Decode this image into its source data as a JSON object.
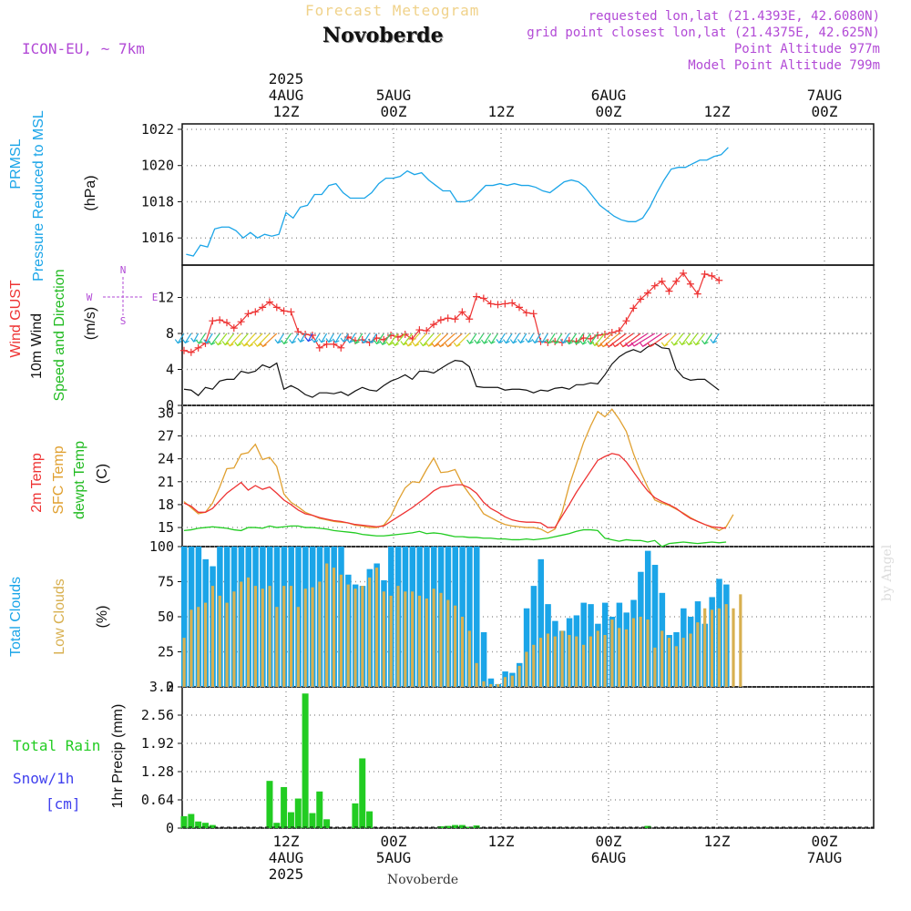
{
  "header": {
    "title": "Forecast Meteogram",
    "location": "Novoberde",
    "model": "ICON-EU, ~ 7km",
    "requested": "requested lon,lat (21.4393E, 42.6080N)",
    "grid_point": "grid point closest lon,lat (21.4375E, 42.625N)",
    "point_altitude": "Point Altitude 977m",
    "model_altitude": "Model Point Altitude 799m",
    "credit": "by Angel",
    "footer": "Novoberde"
  },
  "colors": {
    "pressure": "#1ba5e8",
    "gust": "#ee3333",
    "wind": "#111111",
    "temp2m": "#ee3333",
    "sfc_temp": "#e0a030",
    "dewpt": "#22cc22",
    "total_clouds": "#1ba5e8",
    "low_clouds": "#d8b050",
    "rain": "#22cc22",
    "snow": "#4040ee",
    "annotation": "#b24ad6"
  },
  "chart_data": [
    {
      "type": "line",
      "panel": "pressure",
      "ylabel_lines": [
        "PRMSL",
        "Pressure Reduced to MSL"
      ],
      "unit": "(hPa)",
      "ylim": [
        1014.5,
        1022.3
      ],
      "yticks": [
        1016,
        1018,
        1020,
        1022
      ],
      "xlim": [
        0,
        76
      ],
      "series": [
        {
          "values": [
            1015.1,
            1015.0,
            1015.6,
            1015.5,
            1016.5,
            1016.6,
            1016.6,
            1016.4,
            1016.0,
            1016.3,
            1016.0,
            1016.2,
            1016.1,
            1016.2,
            1017.4,
            1017.1,
            1017.7,
            1017.8,
            1018.4,
            1018.4,
            1018.9,
            1019.0,
            1018.5,
            1018.2,
            1018.2,
            1018.2,
            1018.5,
            1019.0,
            1019.3,
            1019.3,
            1019.4,
            1019.7,
            1019.5,
            1019.6,
            1019.2,
            1018.9,
            1018.6,
            1018.6,
            1018.0,
            1018.0,
            1018.1,
            1018.5,
            1018.9,
            1018.9,
            1019.0,
            1018.9,
            1019.0,
            1018.9,
            1018.9,
            1018.8,
            1018.6,
            1018.5,
            1018.8,
            1019.1,
            1019.2,
            1019.1,
            1018.8,
            1018.3,
            1017.8,
            1017.5,
            1017.2,
            1017.0,
            1016.9,
            1016.9,
            1017.1,
            1017.7,
            1018.5,
            1019.2,
            1019.8,
            1019.9,
            1019.9,
            1020.1,
            1020.3,
            1020.3,
            1020.5,
            1020.6,
            1021.0
          ]
        }
      ]
    },
    {
      "type": "line",
      "panel": "wind",
      "ylabel_lines": [
        "Wind GUST",
        "10m Wind",
        "Speed and Direction"
      ],
      "unit": "(m/s)",
      "compass": {
        "n": "N",
        "s": "S",
        "w": "W",
        "e": "E"
      },
      "ylim": [
        0,
        15.6
      ],
      "yticks": [
        0,
        4,
        8,
        12
      ],
      "series": [
        {
          "name": "Wind GUST",
          "values": [
            6.1,
            5.9,
            6.4,
            6.9,
            9.4,
            9.5,
            9.2,
            8.6,
            9.3,
            10.2,
            10.4,
            10.9,
            11.5,
            10.9,
            10.5,
            10.4,
            8.2,
            7.9,
            7.8,
            6.4,
            6.8,
            6.8,
            6.4,
            7.6,
            7.2,
            7.3,
            7.0,
            7.5,
            7.3,
            7.8,
            7.6,
            7.9,
            7.4,
            8.4,
            8.3,
            9.0,
            9.5,
            9.7,
            9.6,
            10.4,
            9.6,
            12.1,
            11.9,
            11.3,
            11.2,
            11.3,
            11.4,
            10.9,
            10.3,
            10.2,
            7.1,
            7.0,
            7.1,
            7.0,
            7.2,
            7.1,
            7.5,
            7.4,
            7.8,
            7.9,
            8.1,
            8.3,
            9.4,
            10.8,
            11.8,
            12.5,
            13.3,
            13.8,
            12.7,
            13.8,
            14.7,
            13.5,
            12.4,
            14.6,
            14.4,
            13.9
          ]
        },
        {
          "name": "10m Wind",
          "values": [
            1.8,
            1.7,
            1.1,
            2.0,
            1.8,
            2.7,
            2.9,
            2.9,
            3.8,
            3.6,
            3.8,
            4.5,
            4.2,
            4.7,
            1.8,
            2.2,
            1.8,
            1.2,
            0.9,
            1.4,
            1.4,
            1.3,
            1.5,
            1.1,
            1.6,
            2.0,
            1.7,
            1.6,
            2.2,
            2.7,
            3.0,
            3.4,
            2.9,
            3.8,
            3.8,
            3.6,
            4.1,
            4.6,
            5.0,
            4.9,
            4.3,
            2.1,
            2.0,
            2.0,
            2.0,
            1.7,
            1.8,
            1.8,
            1.7,
            1.4,
            1.7,
            1.6,
            1.9,
            2.0,
            1.8,
            2.3,
            2.3,
            2.5,
            2.4,
            3.4,
            4.6,
            5.4,
            5.9,
            6.2,
            5.9,
            6.5,
            6.9,
            6.4,
            6.3,
            4.0,
            3.1,
            2.8,
            2.9,
            2.9,
            2.3,
            1.7
          ]
        }
      ]
    },
    {
      "type": "line",
      "panel": "temperature",
      "ylabel_lines": [
        "2m Temp",
        "SFC Temp",
        "dewpt Temp"
      ],
      "unit": "(C)",
      "ylim": [
        12.5,
        31
      ],
      "yticks": [
        15,
        18,
        21,
        24,
        27,
        30
      ],
      "series": [
        {
          "name": "2m Temp",
          "values": [
            18.2,
            17.8,
            17.0,
            17.0,
            17.5,
            18.5,
            19.5,
            20.2,
            20.9,
            19.9,
            20.5,
            20.0,
            20.3,
            19.5,
            18.6,
            18.0,
            17.3,
            16.8,
            16.6,
            16.3,
            16.1,
            15.9,
            15.8,
            15.6,
            15.4,
            15.3,
            15.2,
            15.1,
            15.2,
            15.8,
            16.4,
            17.0,
            17.6,
            18.3,
            19.0,
            19.8,
            20.3,
            20.4,
            20.6,
            20.6,
            20.2,
            19.5,
            18.3,
            17.5,
            17.0,
            16.4,
            16.0,
            15.8,
            15.7,
            15.7,
            15.6,
            15.0,
            15.0,
            16.5,
            18.0,
            19.6,
            21.0,
            22.4,
            23.8,
            24.3,
            24.7,
            24.5,
            23.6,
            22.3,
            21.0,
            19.8,
            18.9,
            18.4,
            18.0,
            17.5,
            16.8,
            16.2,
            15.8,
            15.4,
            15.1,
            15.0,
            14.9
          ]
        },
        {
          "name": "SFC Temp",
          "values": [
            18.4,
            17.6,
            16.8,
            17.0,
            18.2,
            20.3,
            22.7,
            22.8,
            24.6,
            24.8,
            25.9,
            23.9,
            24.2,
            23.0,
            19.4,
            18.3,
            17.7,
            17.0,
            16.6,
            16.2,
            16.0,
            15.8,
            15.7,
            15.6,
            15.3,
            15.2,
            15.0,
            15.0,
            15.3,
            16.5,
            18.5,
            20.2,
            21.0,
            20.9,
            22.6,
            24.1,
            22.2,
            22.3,
            22.6,
            20.7,
            19.4,
            18.2,
            16.8,
            16.3,
            15.8,
            15.4,
            15.2,
            15.1,
            15.0,
            15.0,
            14.8,
            14.3,
            14.8,
            17.0,
            20.5,
            23.3,
            26.1,
            28.3,
            30.2,
            29.5,
            30.5,
            29.2,
            27.6,
            24.7,
            22.3,
            20.3,
            18.6,
            18.2,
            17.9,
            17.4,
            16.9,
            16.3,
            15.8,
            15.4,
            15.0,
            14.6,
            15.1,
            16.7
          ]
        },
        {
          "name": "dewpt Temp",
          "values": [
            14.6,
            14.7,
            14.9,
            15.0,
            15.1,
            15.0,
            14.9,
            14.7,
            14.6,
            15.0,
            15.0,
            14.9,
            15.2,
            15.0,
            15.1,
            15.2,
            15.2,
            15.0,
            15.0,
            14.9,
            14.8,
            14.6,
            14.5,
            14.4,
            14.3,
            14.1,
            14.0,
            13.9,
            13.9,
            14.0,
            14.1,
            14.2,
            14.3,
            14.5,
            14.2,
            14.3,
            14.2,
            14.0,
            13.8,
            13.8,
            13.7,
            13.7,
            13.6,
            13.6,
            13.5,
            13.5,
            13.4,
            13.4,
            13.5,
            13.4,
            13.5,
            13.6,
            13.8,
            14.0,
            14.2,
            14.5,
            14.7,
            14.7,
            14.6,
            13.6,
            13.4,
            13.2,
            13.4,
            13.3,
            13.3,
            13.1,
            13.3,
            12.5,
            12.9,
            13.0,
            13.1,
            13.0,
            12.9,
            13.0,
            13.1,
            13.0,
            13.1
          ]
        }
      ]
    },
    {
      "type": "bar",
      "panel": "clouds",
      "ylabel_lines": [
        "Total Clouds",
        "Low Clouds"
      ],
      "unit": "(%)",
      "ylim": [
        0,
        100
      ],
      "yticks": [
        0,
        25,
        50,
        75,
        100
      ],
      "series": [
        {
          "name": "Total Clouds",
          "values": [
            100,
            100,
            100,
            91,
            86,
            100,
            100,
            100,
            100,
            100,
            100,
            100,
            100,
            100,
            100,
            100,
            100,
            100,
            100,
            100,
            100,
            100,
            100,
            80,
            73,
            72,
            84,
            88,
            76,
            100,
            100,
            100,
            100,
            100,
            100,
            100,
            100,
            100,
            100,
            100,
            100,
            100,
            39,
            6,
            2,
            11,
            10,
            17,
            56,
            72,
            91,
            59,
            47,
            40,
            49,
            51,
            60,
            59,
            45,
            60,
            50,
            60,
            53,
            62,
            82,
            97,
            87,
            67,
            37,
            39,
            56,
            50,
            61,
            45,
            64,
            77,
            73
          ]
        },
        {
          "name": "Low Clouds",
          "values": [
            35,
            55,
            57,
            60,
            72,
            65,
            60,
            68,
            75,
            78,
            72,
            70,
            72,
            57,
            72,
            72,
            57,
            70,
            71,
            75,
            88,
            85,
            80,
            73,
            70,
            72,
            78,
            85,
            68,
            65,
            72,
            68,
            68,
            65,
            63,
            70,
            67,
            62,
            58,
            50,
            40,
            17,
            4,
            2,
            2,
            7,
            8,
            15,
            25,
            30,
            35,
            38,
            36,
            40,
            37,
            36,
            30,
            36,
            40,
            37,
            48,
            42,
            41,
            49,
            50,
            48,
            28,
            40,
            35,
            29,
            35,
            38,
            46,
            56,
            55,
            56,
            59,
            56,
            66
          ]
        }
      ]
    },
    {
      "type": "bar",
      "panel": "precip",
      "ylabel": "1hr Precip (mm)",
      "side_labels": [
        "Total  Rain",
        "Snow/1h",
        "[cm]"
      ],
      "ylim": [
        0,
        3.2
      ],
      "yticks": [
        "0",
        "0.64",
        "1.28",
        "1.92",
        "2.56",
        "3.2"
      ],
      "series": [
        {
          "name": "Total Rain",
          "values": [
            0.27,
            0.32,
            0.15,
            0.12,
            0.07,
            0,
            0,
            0,
            0,
            0,
            0,
            0,
            1.07,
            0.12,
            0.93,
            0.36,
            0.67,
            3.05,
            0.34,
            0.83,
            0.2,
            0,
            0,
            0,
            0.56,
            1.58,
            0.38,
            0,
            0,
            0,
            0,
            0,
            0,
            0,
            0,
            0,
            0.04,
            0.05,
            0.07,
            0.07,
            0.03,
            0.06,
            0,
            0,
            0,
            0,
            0,
            0,
            0,
            0,
            0,
            0,
            0,
            0,
            0,
            0,
            0,
            0,
            0,
            0,
            0,
            0,
            0,
            0,
            0,
            0.05,
            0,
            0,
            0,
            0,
            0,
            0,
            0,
            0,
            0,
            0,
            0,
            0
          ]
        }
      ]
    }
  ],
  "time_axis": {
    "top_labels": [
      {
        "key": "tick1",
        "lines": [
          "2025",
          "4AUG",
          "12Z"
        ]
      },
      {
        "key": "tick2",
        "lines": [
          "5AUG",
          "00Z"
        ]
      },
      {
        "key": "tick3",
        "lines": [
          "12Z"
        ]
      },
      {
        "key": "tick4",
        "lines": [
          "6AUG",
          "00Z"
        ]
      },
      {
        "key": "tick5",
        "lines": [
          "12Z"
        ]
      },
      {
        "key": "tick6",
        "lines": [
          "7AUG",
          "00Z"
        ]
      }
    ],
    "bottom_labels": [
      {
        "key": "tick1",
        "lines": [
          "12Z",
          "4AUG",
          "2025"
        ]
      },
      {
        "key": "tick2",
        "lines": [
          "00Z",
          "5AUG"
        ]
      },
      {
        "key": "tick3",
        "lines": [
          "12Z"
        ]
      },
      {
        "key": "tick4",
        "lines": [
          "00Z",
          "6AUG"
        ]
      },
      {
        "key": "tick5",
        "lines": [
          "12Z"
        ]
      },
      {
        "key": "tick6",
        "lines": [
          "00Z",
          "7AUG"
        ]
      }
    ]
  }
}
